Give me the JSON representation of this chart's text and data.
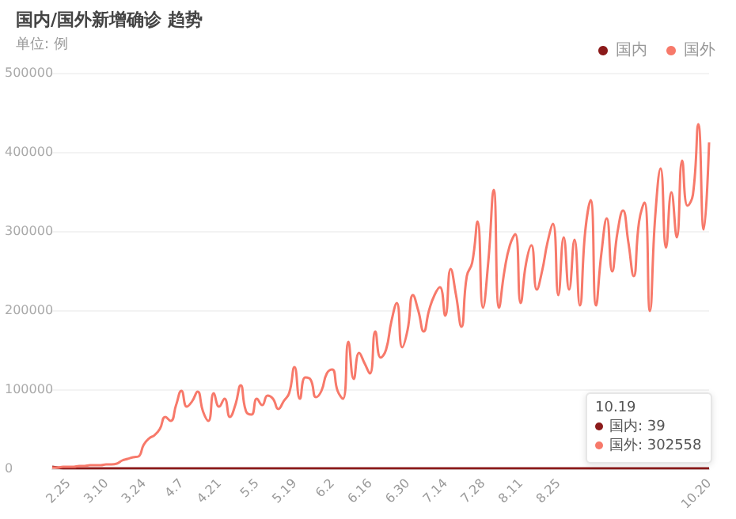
{
  "chart_data": {
    "type": "line",
    "title": "国内/国外新增确诊 趋势",
    "subtitle": "单位: 例",
    "categories": [
      null,
      null,
      null,
      "2.25",
      null,
      null,
      null,
      null,
      null,
      null,
      "3.10",
      null,
      null,
      null,
      null,
      null,
      null,
      "3.24",
      null,
      null,
      null,
      null,
      null,
      null,
      "4.7",
      null,
      null,
      null,
      null,
      null,
      null,
      "4.21",
      null,
      null,
      null,
      null,
      null,
      null,
      "5.5",
      null,
      null,
      null,
      null,
      null,
      null,
      "5.19",
      null,
      null,
      null,
      null,
      null,
      null,
      "6.2",
      null,
      null,
      null,
      null,
      null,
      null,
      "6.16",
      null,
      null,
      null,
      null,
      null,
      null,
      "6.30",
      null,
      null,
      null,
      null,
      null,
      null,
      "7.14",
      null,
      null,
      null,
      null,
      null,
      null,
      "7.28",
      null,
      null,
      null,
      null,
      null,
      null,
      "8.11",
      null,
      null,
      null,
      null,
      null,
      null,
      "8.25",
      null,
      null,
      null,
      null,
      null,
      null,
      null,
      null,
      null,
      null,
      null,
      null,
      null,
      null,
      null,
      null,
      null,
      null,
      null,
      null,
      null,
      null,
      null,
      null,
      null,
      null,
      null,
      "10.20"
    ],
    "series": [
      {
        "name": "国内",
        "color": "#8b1a1a",
        "values": [
          2000,
          1000,
          0,
          0,
          0,
          0,
          0,
          0,
          0,
          0,
          0,
          0,
          0,
          0,
          0,
          0,
          0,
          0,
          0,
          0,
          0,
          0,
          0,
          0,
          0,
          0,
          0,
          0,
          0,
          0,
          0,
          0,
          0,
          0,
          0,
          0,
          0,
          0,
          0,
          0,
          0,
          0,
          0,
          0,
          0,
          0,
          0,
          0,
          0,
          0,
          0,
          0,
          0,
          0,
          0,
          0,
          0,
          0,
          0,
          0,
          0,
          0,
          0,
          0,
          0,
          0,
          0,
          0,
          0,
          0,
          0,
          0,
          0,
          0,
          0,
          0,
          0,
          0,
          0,
          0,
          0,
          0,
          0,
          0,
          0,
          0,
          0,
          0,
          0,
          0,
          0,
          0,
          0,
          0,
          0,
          0,
          0,
          0,
          0,
          0,
          0,
          0,
          0,
          0,
          0,
          0,
          0,
          0,
          0,
          0,
          0,
          0,
          0,
          0,
          0,
          0,
          0,
          0,
          0,
          0,
          0,
          0,
          0
        ]
      },
      {
        "name": "国外",
        "color": "#f7796a",
        "values": [
          1000,
          1000,
          2000,
          2000,
          2000,
          3000,
          3000,
          4000,
          4000,
          4000,
          5000,
          5000,
          6000,
          10000,
          12000,
          14000,
          15000,
          30000,
          38000,
          42000,
          50000,
          65000,
          60000,
          80000,
          98000,
          78000,
          85000,
          97000,
          72000,
          60000,
          95000,
          78000,
          88000,
          65000,
          80000,
          105000,
          72000,
          68000,
          88000,
          80000,
          92000,
          88000,
          75000,
          85000,
          95000,
          128000,
          88000,
          115000,
          112000,
          90000,
          98000,
          120000,
          125000,
          98000,
          88000,
          160000,
          113000,
          146000,
          133000,
          120000,
          173000,
          140000,
          150000,
          186000,
          209000,
          153000,
          175000,
          219000,
          199000,
          173000,
          200000,
          219000,
          229000,
          193000,
          252000,
          219000,
          179000,
          243000,
          260000,
          312000,
          203000,
          262000,
          352000,
          203000,
          250000,
          282000,
          296000,
          209000,
          259000,
          282000,
          226000,
          250000,
          286000,
          309000,
          219000,
          292000,
          226000,
          289000,
          206000,
          300000,
          339000,
          206000,
          272000,
          316000,
          249000,
          299000,
          326000,
          286000,
          243000,
          312000,
          336000,
          199000,
          319000,
          379000,
          279000,
          349000,
          292000,
          389000,
          332000,
          346000,
          435000,
          302000,
          412000
        ]
      }
    ],
    "ylim": [
      0,
      500000
    ],
    "yticks": [
      0,
      100000,
      200000,
      300000,
      400000,
      500000
    ],
    "grid": "y",
    "legend": "top right",
    "marker": "none",
    "line_style": "solid",
    "annotations": [
      "10.19",
      "国内: 39",
      "国外: 302558"
    ]
  }
}
